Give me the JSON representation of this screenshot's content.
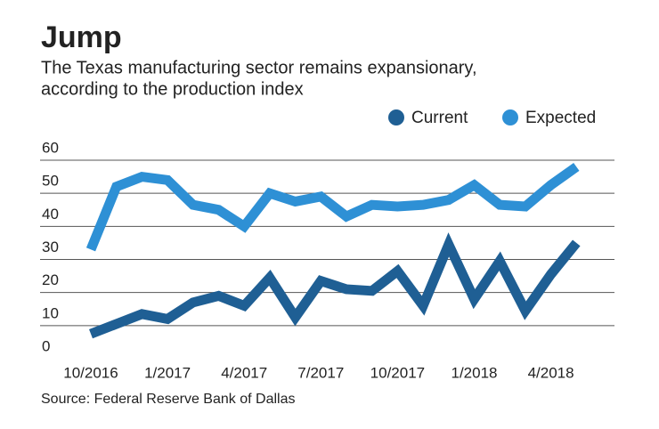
{
  "chart_data": {
    "type": "line",
    "title": "Jump",
    "subtitle": [
      "The Texas manufacturing sector remains expansionary,",
      "according to the production index"
    ],
    "source": "Source: Federal Reserve Bank of Dallas",
    "categories": [
      "10/2016",
      null,
      null,
      "1/2017",
      null,
      null,
      "4/2017",
      null,
      null,
      "7/2017",
      null,
      null,
      "10/2017",
      null,
      null,
      "1/2018",
      null,
      null,
      "4/2018",
      null
    ],
    "series": [
      {
        "name": "Current",
        "color": "#1f5f94",
        "values": [
          7.5,
          10.5,
          13.5,
          12,
          17,
          19,
          16,
          24.5,
          12.5,
          23.5,
          21,
          20.5,
          26.5,
          16,
          34.5,
          18,
          29.5,
          14.5,
          25.5,
          35
        ]
      },
      {
        "name": "Expected",
        "color": "#2e90d5",
        "values": [
          33,
          52,
          55,
          54,
          46.5,
          45,
          40,
          50,
          47.5,
          49,
          43,
          46.5,
          46,
          46.5,
          48,
          52.5,
          46.5,
          46,
          52.5,
          58
        ]
      }
    ],
    "ylim": [
      0,
      60
    ],
    "yticks": [
      0,
      10,
      20,
      30,
      40,
      50,
      60
    ],
    "grid": true,
    "legend": "top-right"
  }
}
